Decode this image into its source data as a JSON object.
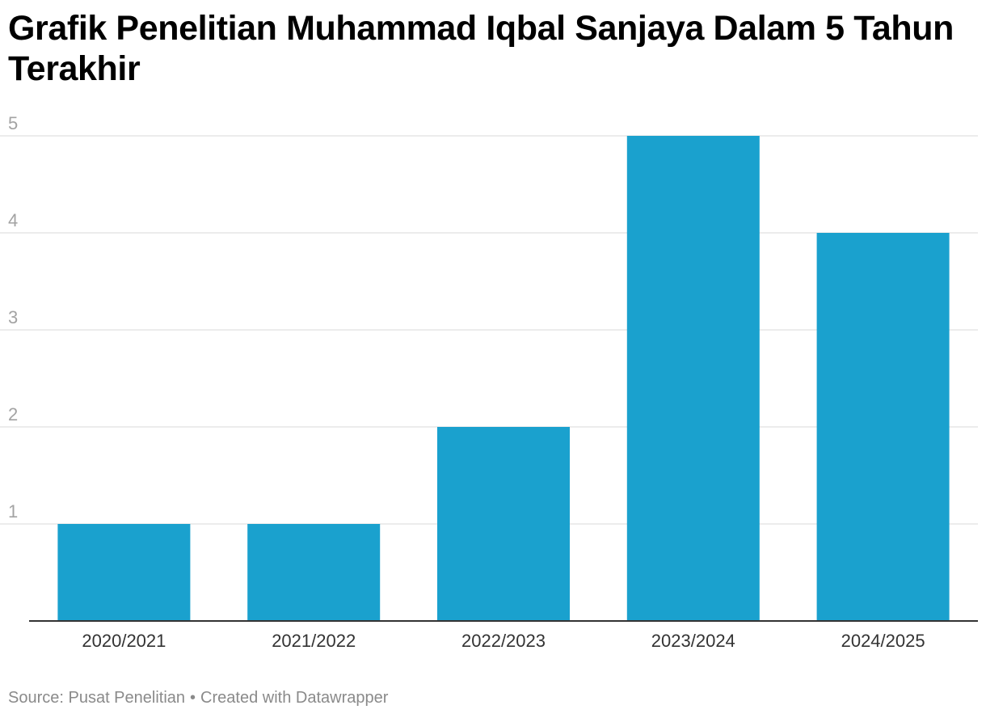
{
  "chart_data": {
    "type": "bar",
    "title": "Grafik Penelitian Muhammad Iqbal Sanjaya Dalam 5 Tahun Terakhir",
    "categories": [
      "2020/2021",
      "2021/2022",
      "2022/2023",
      "2023/2024",
      "2024/2025"
    ],
    "values": [
      1,
      1,
      2,
      5,
      4
    ],
    "yticks": [
      1,
      2,
      3,
      4,
      5
    ],
    "ylim": [
      0,
      5
    ],
    "xlabel": "",
    "ylabel": "",
    "grid": true,
    "bar_color": "#1aa1ce",
    "gridline_color": "#e0e0e0",
    "axis_color": "#333333"
  },
  "footer": {
    "source": "Source: Pusat Penelitian",
    "separator": "•",
    "credit": "Created with Datawrapper"
  }
}
